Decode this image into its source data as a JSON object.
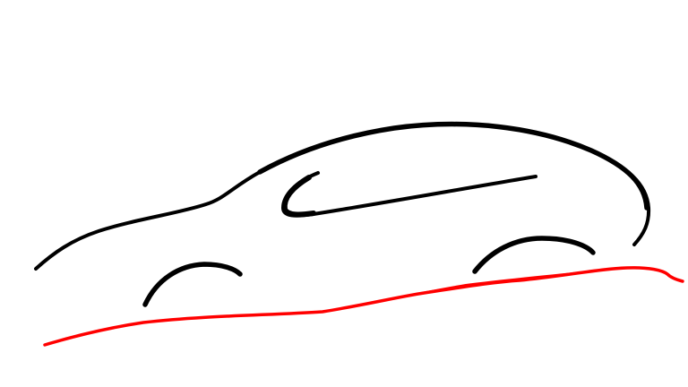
{
  "drawing": {
    "subject": "car-outline-sketch",
    "colors": {
      "background": "#ffffff",
      "outline": "#000000",
      "ground": "#ff0000"
    }
  }
}
